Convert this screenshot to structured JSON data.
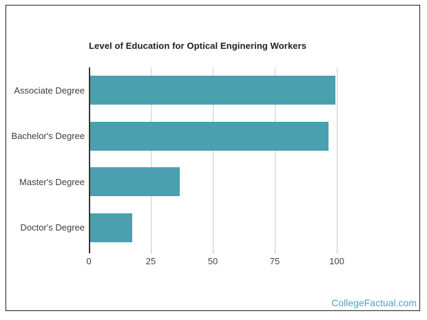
{
  "window": {
    "background": "#FFFFFF",
    "frame_border_color": "#1B1B1B"
  },
  "footer": {
    "link_text": "CollegeFactual.com",
    "link_color": "#4FA2C5"
  },
  "chart_data": {
    "type": "bar",
    "orientation": "horizontal",
    "title": "Level of Education for Optical Enginering Workers",
    "categories": [
      "Associate Degree",
      "Bachelor's Degree",
      "Master's Degree",
      "Doctor's Degree"
    ],
    "values": [
      99,
      96,
      36,
      17
    ],
    "xlabel": "",
    "ylabel": "",
    "x_ticks": [
      0,
      25,
      50,
      75,
      100
    ],
    "xlim": [
      0,
      114
    ],
    "grid": true,
    "legend": "none",
    "bar_color": "#4AA0AE",
    "gridline_color": "#CCCCCC",
    "axis_line_color": "#333333",
    "title_color": "#212121",
    "label_color": "#3D3D3D",
    "tick_label_color": "#444444"
  }
}
